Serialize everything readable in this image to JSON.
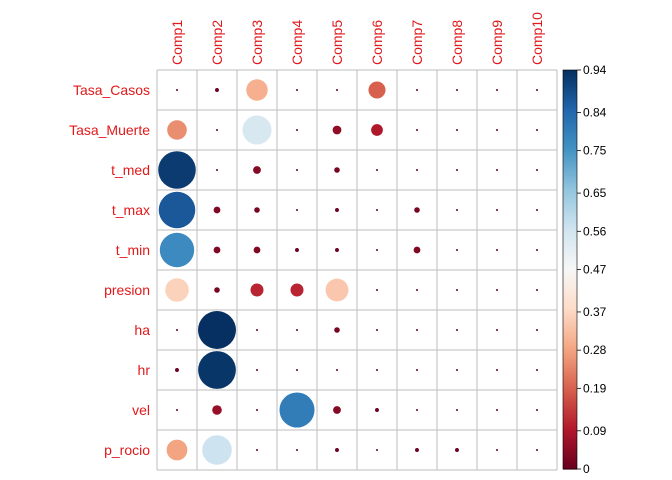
{
  "chart_data": {
    "type": "heatmap",
    "title": "",
    "columns": [
      "Comp1",
      "Comp2",
      "Comp3",
      "Comp4",
      "Comp5",
      "Comp6",
      "Comp7",
      "Comp8",
      "Comp9",
      "Comp10"
    ],
    "rows": [
      "Tasa_Casos",
      "Tasa_Muerte",
      "t_med",
      "t_max",
      "t_min",
      "presion",
      "ha",
      "hr",
      "vel",
      "p_rocio"
    ],
    "values": [
      [
        0.0,
        0.01,
        0.3,
        0.0,
        0.0,
        0.19,
        0.0,
        0.0,
        0.0,
        0.0
      ],
      [
        0.25,
        0.0,
        0.55,
        0.0,
        0.05,
        0.09,
        0.0,
        0.0,
        0.0,
        0.0
      ],
      [
        0.92,
        0.0,
        0.04,
        0.0,
        0.02,
        0.0,
        0.0,
        0.0,
        0.0,
        0.0
      ],
      [
        0.87,
        0.03,
        0.02,
        0.0,
        0.01,
        0.0,
        0.02,
        0.0,
        0.0,
        0.0
      ],
      [
        0.77,
        0.03,
        0.03,
        0.01,
        0.01,
        0.0,
        0.03,
        0.0,
        0.0,
        0.0
      ],
      [
        0.36,
        0.02,
        0.11,
        0.11,
        0.34,
        0.0,
        0.0,
        0.0,
        0.0,
        0.0
      ],
      [
        0.0,
        0.94,
        0.0,
        0.0,
        0.02,
        0.0,
        0.0,
        0.0,
        0.0,
        0.0
      ],
      [
        0.01,
        0.93,
        0.0,
        0.0,
        0.0,
        0.0,
        0.0,
        0.0,
        0.0,
        0.0
      ],
      [
        0.0,
        0.06,
        0.0,
        0.8,
        0.04,
        0.01,
        0.0,
        0.0,
        0.0,
        0.0
      ],
      [
        0.28,
        0.57,
        0.0,
        0.0,
        0.01,
        0.0,
        0.01,
        0.01,
        0.0,
        0.0
      ]
    ],
    "colorbar": {
      "ticks": [
        0.94,
        0.84,
        0.75,
        0.65,
        0.56,
        0.47,
        0.37,
        0.28,
        0.19,
        0.09,
        0
      ],
      "range": [
        0,
        0.94
      ]
    },
    "colors": {
      "low": "#67001f",
      "mid": "#ffffff",
      "high": "#053061",
      "label": "#e0191b",
      "grid": "#bebebe"
    }
  }
}
